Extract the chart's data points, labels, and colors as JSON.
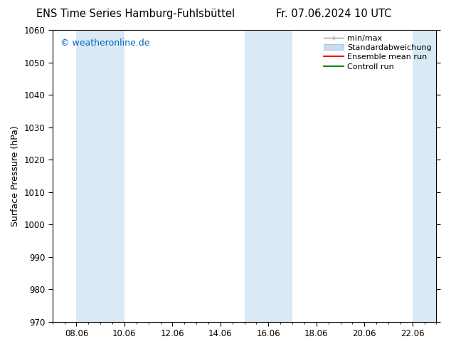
{
  "title_left": "ENS Time Series Hamburg-Fuhlsbüttel",
  "title_right": "Fr. 07.06.2024 10 UTC",
  "ylabel": "Surface Pressure (hPa)",
  "ylim": [
    970,
    1060
  ],
  "yticks": [
    970,
    980,
    990,
    1000,
    1010,
    1020,
    1030,
    1040,
    1050,
    1060
  ],
  "xlim": [
    0,
    16
  ],
  "xtick_labels": [
    "08.06",
    "10.06",
    "12.06",
    "14.06",
    "16.06",
    "18.06",
    "20.06",
    "22.06"
  ],
  "xtick_positions": [
    1,
    3,
    5,
    7,
    9,
    11,
    13,
    15
  ],
  "watermark": "© weatheronline.de",
  "watermark_color": "#0066cc",
  "background_color": "#ffffff",
  "plot_bg_color": "#ffffff",
  "shaded_bands": [
    {
      "x_start": 1,
      "x_end": 3
    },
    {
      "x_start": 8,
      "x_end": 10
    },
    {
      "x_start": 15,
      "x_end": 16
    }
  ],
  "shaded_color": "#daeaf5",
  "legend_items": [
    {
      "label": "min/max",
      "color": "#aaaaaa",
      "lw": 1
    },
    {
      "label": "Standardabweichung",
      "color": "#c5dff0"
    },
    {
      "label": "Ensemble mean run",
      "color": "#ff0000",
      "lw": 1.5
    },
    {
      "label": "Controll run",
      "color": "#008800",
      "lw": 1.5
    }
  ],
  "title_fontsize": 10.5,
  "axis_fontsize": 9,
  "tick_fontsize": 8.5,
  "watermark_fontsize": 9,
  "legend_fontsize": 8
}
